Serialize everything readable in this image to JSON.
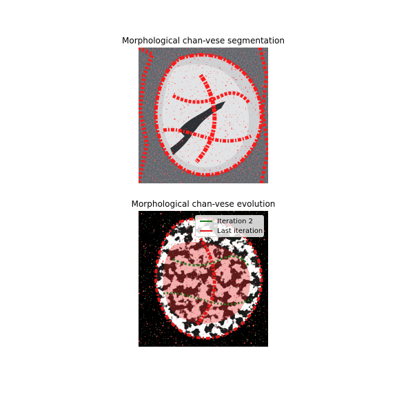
{
  "figure": {
    "top_panel": {
      "title": "Morphological chan-vese segmentation"
    },
    "bottom_panel": {
      "title": "Morphological chan-vese evolution",
      "legend": [
        {
          "label": "Iteration 2",
          "color": "#1f7a1f"
        },
        {
          "label": "Last iteration",
          "color": "#e01a1a"
        }
      ]
    }
  },
  "colors": {
    "contour_red": "#ff1a1a",
    "evolution_green": "#1f7a1f",
    "evolution_red": "#e01a1a",
    "background": "#ffffff"
  }
}
